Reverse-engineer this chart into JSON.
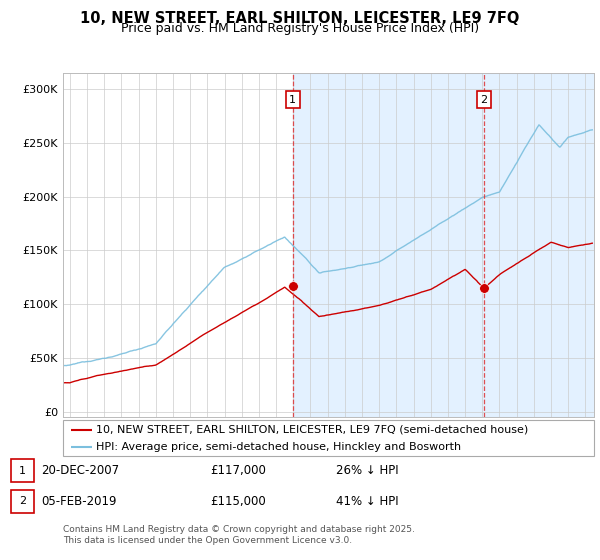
{
  "title": "10, NEW STREET, EARL SHILTON, LEICESTER, LE9 7FQ",
  "subtitle": "Price paid vs. HM Land Registry's House Price Index (HPI)",
  "ylabel_ticks": [
    "£0",
    "£50K",
    "£100K",
    "£150K",
    "£200K",
    "£250K",
    "£300K"
  ],
  "ytick_values": [
    0,
    50000,
    100000,
    150000,
    200000,
    250000,
    300000
  ],
  "ylim": [
    -5000,
    315000
  ],
  "xlim_start": 1994.6,
  "xlim_end": 2025.5,
  "sale1_x": 2007.97,
  "sale1_y": 117000,
  "sale1_label": "1",
  "sale1_date": "20-DEC-2007",
  "sale1_price": "£117,000",
  "sale1_hpi": "26% ↓ HPI",
  "sale2_x": 2019.09,
  "sale2_y": 115000,
  "sale2_label": "2",
  "sale2_date": "05-FEB-2019",
  "sale2_price": "£115,000",
  "sale2_hpi": "41% ↓ HPI",
  "legend_line1": "10, NEW STREET, EARL SHILTON, LEICESTER, LE9 7FQ (semi-detached house)",
  "legend_line2": "HPI: Average price, semi-detached house, Hinckley and Bosworth",
  "footer": "Contains HM Land Registry data © Crown copyright and database right 2025.\nThis data is licensed under the Open Government Licence v3.0.",
  "hpi_color": "#7bbfde",
  "price_color": "#cc0000",
  "sale_marker_color": "#cc0000",
  "bg_highlight_color": "#dceeff",
  "vline_color": "#dd3333",
  "grid_color": "#cccccc",
  "title_fontsize": 10.5,
  "subtitle_fontsize": 9,
  "tick_fontsize": 8,
  "legend_fontsize": 8,
  "annotation_fontsize": 8.5,
  "footer_fontsize": 6.5
}
